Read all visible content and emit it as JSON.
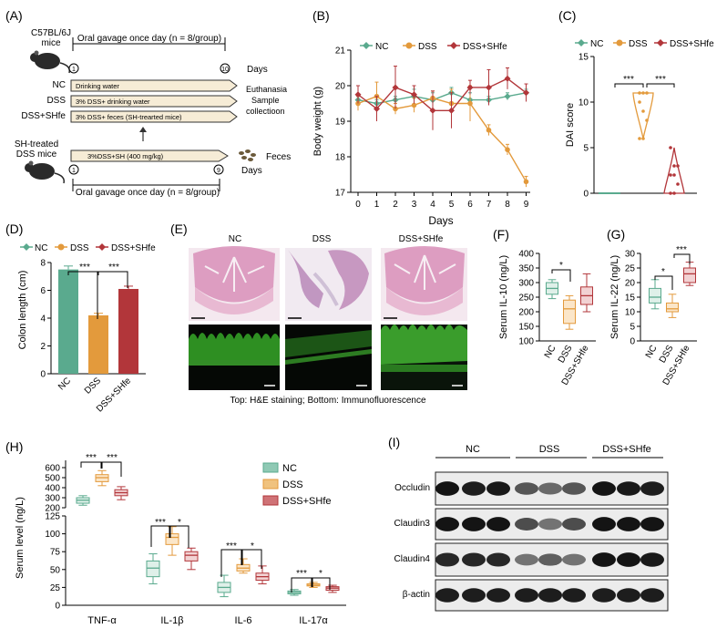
{
  "colors": {
    "nc": "#5aaa8e",
    "dss": "#e39a3c",
    "shfe": "#b2363a",
    "gray": "#888888",
    "if_green": "#3fae2f"
  },
  "panelA": {
    "label": "(A)",
    "mice": "C57BL/6J",
    "mice2": "mice",
    "gavage_top": "Oral gavage once day (n = 8/group)",
    "day_start": "1",
    "day_end": "10",
    "days": "Days",
    "groups": [
      {
        "name": "NC",
        "bar": "Drinking water"
      },
      {
        "name": "DSS",
        "bar": "3% DSS+ drinking water"
      },
      {
        "name": "DSS+SHfe",
        "bar": "3% DSS+ feces (SH-trearted mice)"
      }
    ],
    "euth1": "Euthanasia",
    "euth2": "Sample",
    "euth3": "collectioon",
    "sh1": "SH-treated",
    "sh2": "DSS mice",
    "sh_bar": "3%DSS+SH (400 mg/kg)",
    "feces": "Feces",
    "day2_start": "1",
    "day2_end": "9",
    "days2": "Days",
    "gavage_bottom": "Oral gavage once day (n = 8/group)"
  },
  "panelB": {
    "label": "(B)",
    "legend": [
      "NC",
      "DSS",
      "DSS+SHfe"
    ],
    "xlabel": "Days",
    "ylabel": "Body weight (g)",
    "x_ticks": [
      "0",
      "1",
      "2",
      "3",
      "4",
      "5",
      "6",
      "7",
      "8",
      "9"
    ],
    "y_ticks": [
      "17",
      "18",
      "19",
      "20",
      "21"
    ]
  },
  "panelC": {
    "label": "(C)",
    "ylabel": "DAI score",
    "legend": [
      "NC",
      "DSS",
      "DSS+SHfe"
    ],
    "y_ticks": [
      "0",
      "5",
      "10",
      "15"
    ],
    "sig": [
      "***",
      "***"
    ]
  },
  "panelD": {
    "label": "(D)",
    "ylabel": "Colon length (cm)",
    "legend": [
      "NC",
      "DSS",
      "DSS+SHfe"
    ],
    "y_ticks": [
      "0",
      "2",
      "4",
      "6",
      "8"
    ],
    "x_labels": [
      "NC",
      "DSS",
      "DSS+SHfe"
    ],
    "sig": [
      "***",
      "***"
    ]
  },
  "panelE": {
    "label": "(E)",
    "titles": [
      "NC",
      "DSS",
      "DSS+SHfe"
    ],
    "caption": "Top: H&E staining; Bottom: Immunofluorescence"
  },
  "panelF": {
    "label": "(F)",
    "ylabel": "Serum IL-10 (ng/L)",
    "y_ticks": [
      "100",
      "150",
      "200",
      "250",
      "300",
      "350",
      "400"
    ],
    "x_labels": [
      "NC",
      "DSS",
      "DSS+SHfe"
    ],
    "sig": [
      "*"
    ]
  },
  "panelG": {
    "label": "(G)",
    "ylabel": "Serum IL-22 (ng/L)",
    "y_ticks": [
      "0",
      "5",
      "10",
      "15",
      "20",
      "25",
      "30"
    ],
    "x_labels": [
      "NC",
      "DSS",
      "DSS+SHfe"
    ],
    "sig": [
      "*",
      "***"
    ]
  },
  "panelH": {
    "label": "(H)",
    "ylabel": "Serum level (ng/L)",
    "legend": [
      "NC",
      "DSS",
      "DSS+SHfe"
    ],
    "y_ticks_upper": [
      "200",
      "300",
      "400",
      "500",
      "600"
    ],
    "y_ticks_lower": [
      "0",
      "25",
      "50",
      "75",
      "100",
      "125"
    ],
    "x_labels": [
      "TNF-α",
      "IL-1β",
      "IL-6",
      "IL-17α"
    ],
    "sig": {
      "tnf": [
        "***",
        "***"
      ],
      "il1b": [
        "***",
        "*"
      ],
      "il6": [
        "***",
        "*"
      ],
      "il17": [
        "***",
        "*"
      ]
    }
  },
  "panelI": {
    "label": "(I)",
    "groups": [
      "NC",
      "DSS",
      "DSS+SHfe"
    ],
    "proteins": [
      "Occludin",
      "Claudin3",
      "Claudin4",
      "β-actin"
    ]
  },
  "chart_data": [
    {
      "panel": "B",
      "type": "line",
      "title": "",
      "xlabel": "Days",
      "ylabel": "Body weight (g)",
      "ylim": [
        17,
        21
      ],
      "x": [
        0,
        1,
        2,
        3,
        4,
        5,
        6,
        7,
        8,
        9
      ],
      "series": [
        {
          "name": "NC",
          "values": [
            19.6,
            19.5,
            19.6,
            19.7,
            19.6,
            19.8,
            19.6,
            19.6,
            19.7,
            19.8
          ],
          "err": [
            0.1,
            0.1,
            0.1,
            0.2,
            0.2,
            0.15,
            0.2,
            0.1,
            0.1,
            0.1
          ]
        },
        {
          "name": "DSS",
          "values": [
            19.5,
            19.7,
            19.35,
            19.45,
            19.65,
            19.5,
            19.5,
            18.75,
            18.2,
            17.3
          ],
          "err": [
            0.2,
            0.4,
            0.15,
            0.2,
            0.2,
            0.4,
            0.5,
            0.15,
            0.15,
            0.15
          ]
        },
        {
          "name": "DSS+SHfe",
          "values": [
            19.75,
            19.35,
            19.95,
            19.75,
            19.3,
            19.3,
            19.95,
            19.95,
            20.2,
            19.8
          ],
          "err": [
            0.25,
            0.35,
            0.6,
            0.25,
            0.55,
            0.5,
            0.2,
            0.5,
            0.3,
            0.25
          ]
        }
      ]
    },
    {
      "panel": "C",
      "type": "violin",
      "ylabel": "DAI score",
      "ylim": [
        0,
        15
      ],
      "categories": [
        "NC",
        "DSS",
        "DSS+SHfe"
      ],
      "series": [
        {
          "name": "NC",
          "min": 0,
          "max": 0,
          "points": [
            0,
            0,
            0,
            0,
            0,
            0,
            0,
            0
          ]
        },
        {
          "name": "DSS",
          "min": 6,
          "max": 11,
          "points": [
            11,
            11,
            11,
            10,
            9,
            8,
            6,
            6
          ]
        },
        {
          "name": "DSS+SHfe",
          "min": 0,
          "max": 5,
          "points": [
            5,
            3,
            3,
            2,
            2,
            1,
            0,
            0
          ]
        }
      ]
    },
    {
      "panel": "D",
      "type": "bar",
      "ylabel": "Colon length (cm)",
      "ylim": [
        0,
        8
      ],
      "categories": [
        "NC",
        "DSS",
        "DSS+SHfe"
      ],
      "values": [
        7.5,
        4.2,
        6.1
      ],
      "err": [
        0.25,
        0.15,
        0.2
      ]
    },
    {
      "panel": "F",
      "type": "box",
      "ylabel": "Serum IL-10 (ng/L)",
      "ylim": [
        100,
        400
      ],
      "categories": [
        "NC",
        "DSS",
        "DSS+SHfe"
      ],
      "boxes": [
        {
          "min": 245,
          "q1": 260,
          "median": 280,
          "q3": 300,
          "max": 310
        },
        {
          "min": 140,
          "q1": 160,
          "median": 210,
          "q3": 240,
          "max": 255
        },
        {
          "min": 200,
          "q1": 225,
          "median": 255,
          "q3": 285,
          "max": 330
        }
      ]
    },
    {
      "panel": "G",
      "type": "box",
      "ylabel": "Serum IL-22 (ng/L)",
      "ylim": [
        0,
        30
      ],
      "categories": [
        "NC",
        "DSS",
        "DSS+SHfe"
      ],
      "boxes": [
        {
          "min": 11,
          "q1": 13,
          "median": 15,
          "q3": 18,
          "max": 21
        },
        {
          "min": 8,
          "q1": 10,
          "median": 11,
          "q3": 13,
          "max": 16
        },
        {
          "min": 19,
          "q1": 20,
          "median": 23,
          "q3": 25,
          "max": 27
        }
      ]
    },
    {
      "panel": "H",
      "type": "box",
      "ylabel": "Serum level (ng/L)",
      "categories": [
        "TNF-α",
        "IL-1β",
        "IL-6",
        "IL-17α"
      ],
      "series": [
        {
          "name": "NC",
          "boxes": [
            {
              "min": 225,
              "q1": 245,
              "median": 275,
              "q3": 300,
              "max": 320
            },
            {
              "min": 30,
              "q1": 40,
              "median": 52,
              "q3": 62,
              "max": 72
            },
            {
              "min": 12,
              "q1": 18,
              "median": 25,
              "q3": 32,
              "max": 42
            },
            {
              "min": 14,
              "q1": 16,
              "median": 18,
              "q3": 20,
              "max": 22
            }
          ]
        },
        {
          "name": "DSS",
          "boxes": [
            {
              "min": 420,
              "q1": 460,
              "median": 500,
              "q3": 530,
              "max": 570
            },
            {
              "min": 70,
              "q1": 85,
              "median": 95,
              "q3": 100,
              "max": 110
            },
            {
              "min": 45,
              "q1": 48,
              "median": 52,
              "q3": 57,
              "max": 65
            },
            {
              "min": 25,
              "q1": 27,
              "median": 28,
              "q3": 30,
              "max": 32
            }
          ]
        },
        {
          "name": "DSS+SHfe",
          "boxes": [
            {
              "min": 280,
              "q1": 320,
              "median": 350,
              "q3": 380,
              "max": 410
            },
            {
              "min": 50,
              "q1": 62,
              "median": 70,
              "q3": 75,
              "max": 80
            },
            {
              "min": 30,
              "q1": 35,
              "median": 40,
              "q3": 45,
              "max": 55
            },
            {
              "min": 18,
              "q1": 21,
              "median": 24,
              "q3": 26,
              "max": 28
            }
          ]
        }
      ]
    }
  ]
}
